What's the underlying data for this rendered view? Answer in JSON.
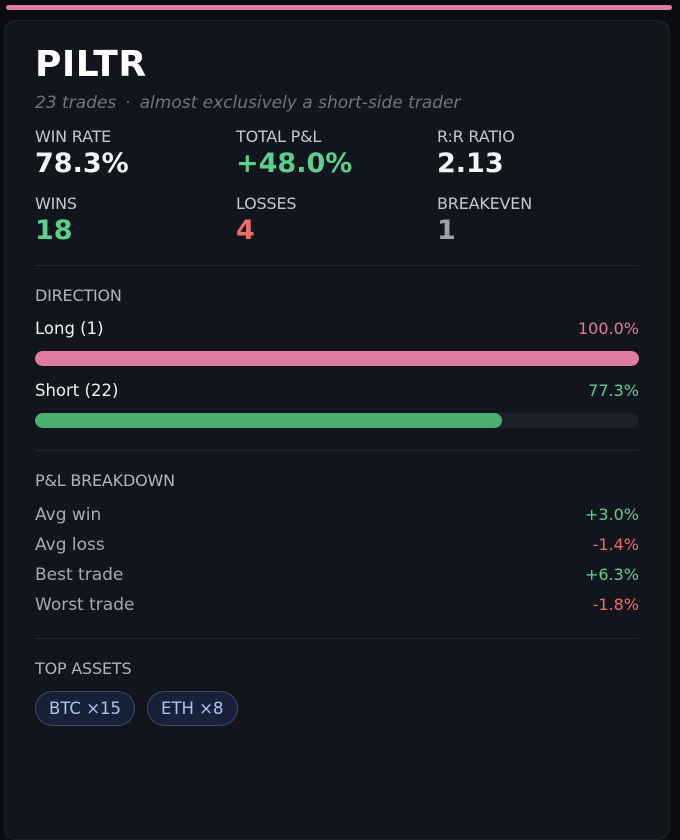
{
  "trader": {
    "name": "PILTR",
    "trade_count": "23 trades",
    "separator": "·",
    "description": "almost exclusively a short-side trader"
  },
  "stats": [
    {
      "label": "WIN RATE",
      "value": "78.3%",
      "color": "#f4f6f9"
    },
    {
      "label": "TOTAL P&L",
      "value": "+48.0%",
      "color": "#5bd08e"
    },
    {
      "label": "R:R RATIO",
      "value": "2.13",
      "color": "#f4f6f9"
    },
    {
      "label": "WINS",
      "value": "18",
      "color": "#5bd08e"
    },
    {
      "label": "LOSSES",
      "value": "4",
      "color": "#ef6b6b"
    },
    {
      "label": "BREAKEVEN",
      "value": "1",
      "color": "#9aa2ad"
    }
  ],
  "direction": {
    "label": "DIRECTION",
    "rows": [
      {
        "name": "Long (1)",
        "pct_text": "100.0%",
        "fraction": 1.0,
        "color": "#e07ba3"
      },
      {
        "name": "Short (22)",
        "pct_text": "77.3%",
        "fraction": 0.773,
        "color": "#4caf6e"
      }
    ]
  },
  "pnl": {
    "label": "P&L BREAKDOWN",
    "rows": [
      {
        "label": "Avg win",
        "value": "+3.0%",
        "color": "#5bd08e"
      },
      {
        "label": "Avg loss",
        "value": "-1.4%",
        "color": "#ef6b6b"
      },
      {
        "label": "Best trade",
        "value": "+6.3%",
        "color": "#5bd08e"
      },
      {
        "label": "Worst trade",
        "value": "-1.8%",
        "color": "#ef6b6b"
      }
    ]
  },
  "assets": {
    "label": "TOP ASSETS",
    "chips": [
      "BTC ×15",
      "ETH ×8"
    ]
  },
  "colors": {
    "accent": "#e07ba3",
    "positive": "#5bd08e",
    "negative": "#ef6b6b",
    "neutral": "#9aa2ad"
  }
}
